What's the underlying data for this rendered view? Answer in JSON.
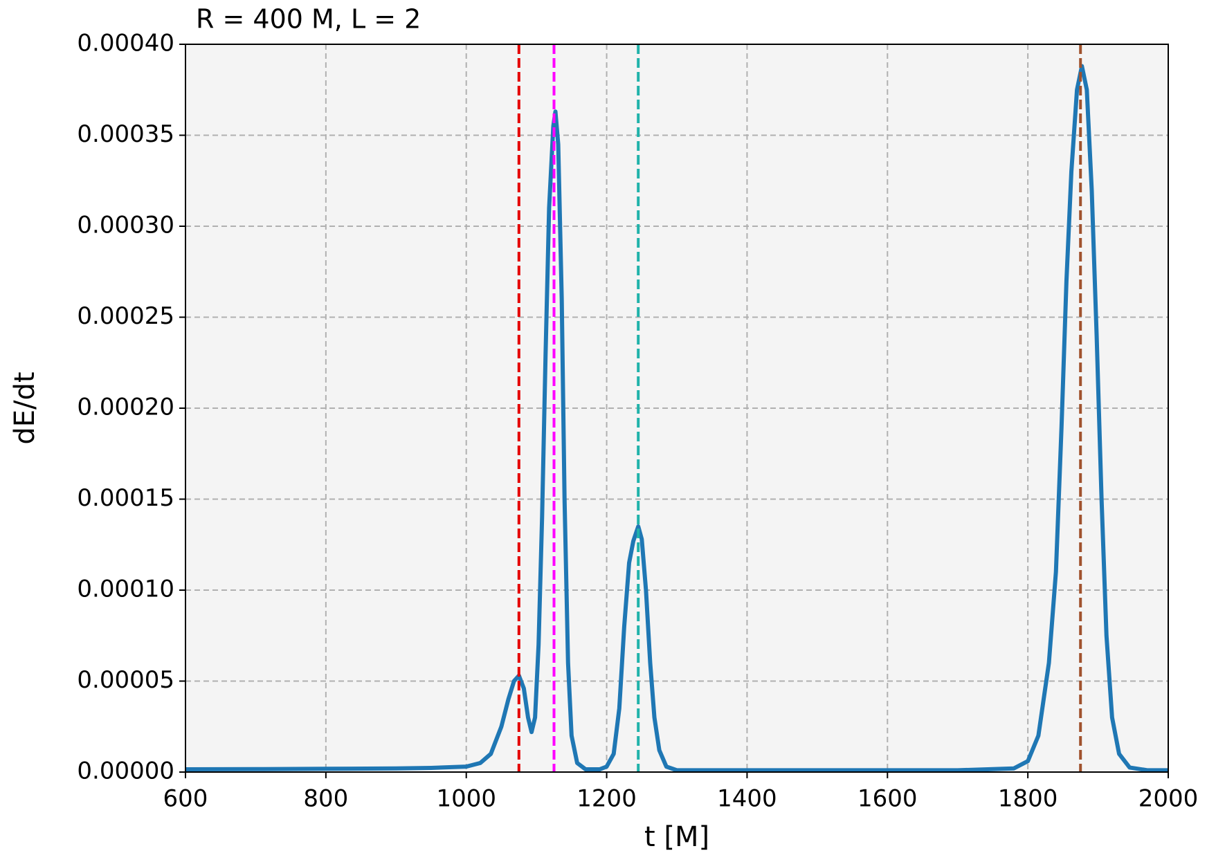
{
  "chart_data": {
    "type": "line",
    "title": "R = 400 M, L = 2",
    "xlabel": "t [M]",
    "ylabel": "dE/dt",
    "x": [
      600,
      700,
      800,
      900,
      950,
      1000,
      1020,
      1035,
      1050,
      1060,
      1068,
      1075,
      1082,
      1088,
      1093,
      1098,
      1103,
      1108,
      1113,
      1118,
      1124,
      1127,
      1131,
      1136,
      1140,
      1145,
      1150,
      1158,
      1170,
      1190,
      1200,
      1210,
      1218,
      1225,
      1232,
      1238,
      1245,
      1250,
      1256,
      1262,
      1268,
      1275,
      1285,
      1300,
      1500,
      1700,
      1780,
      1800,
      1815,
      1830,
      1840,
      1848,
      1855,
      1862,
      1870,
      1877,
      1884,
      1891,
      1898,
      1905,
      1912,
      1920,
      1930,
      1945,
      1970,
      2000
    ],
    "series": [
      {
        "color": "#1f77b4",
        "values": [
          1.5e-06,
          1.6e-06,
          1.8e-06,
          2e-06,
          2.3e-06,
          3e-06,
          5e-06,
          1e-05,
          2.5e-05,
          4e-05,
          5e-05,
          5.3e-05,
          4.6e-05,
          3e-05,
          2.2e-05,
          3e-05,
          7e-05,
          0.00014,
          0.00023,
          0.00031,
          0.000355,
          0.000363,
          0.000345,
          0.00026,
          0.00015,
          6e-05,
          2e-05,
          5e-06,
          1.5e-06,
          1.5e-06,
          3e-06,
          1e-05,
          3.5e-05,
          8e-05,
          0.000115,
          0.000127,
          0.000135,
          0.000128,
          0.0001,
          6e-05,
          3e-05,
          1.2e-05,
          3e-06,
          1e-06,
          1e-06,
          1e-06,
          2e-06,
          6e-06,
          2e-05,
          6e-05,
          0.00011,
          0.00019,
          0.00027,
          0.00033,
          0.000375,
          0.000388,
          0.000375,
          0.00032,
          0.00024,
          0.00015,
          7.5e-05,
          3e-05,
          1e-05,
          2.5e-06,
          1e-06,
          1e-06
        ]
      }
    ],
    "vlines": [
      {
        "x": 1075,
        "color": "#e50000"
      },
      {
        "x": 1125,
        "color": "#ff00ff"
      },
      {
        "x": 1245,
        "color": "#20b2aa"
      },
      {
        "x": 1875,
        "color": "#a0522d"
      }
    ],
    "xlim": [
      600,
      2000
    ],
    "xticks": [
      600,
      800,
      1000,
      1200,
      1400,
      1600,
      1800,
      2000
    ],
    "ylim": [
      0,
      0.0004
    ],
    "yticks": [
      {
        "value": 0,
        "label": "0.00000"
      },
      {
        "value": 5e-05,
        "label": "0.00005"
      },
      {
        "value": 0.0001,
        "label": "0.00010"
      },
      {
        "value": 0.00015,
        "label": "0.00015"
      },
      {
        "value": 0.0002,
        "label": "0.00020"
      },
      {
        "value": 0.00025,
        "label": "0.00025"
      },
      {
        "value": 0.0003,
        "label": "0.00030"
      },
      {
        "value": 0.00035,
        "label": "0.00035"
      },
      {
        "value": 0.0004,
        "label": "0.00040"
      }
    ],
    "grid": true,
    "background": "#f4f4f4"
  }
}
